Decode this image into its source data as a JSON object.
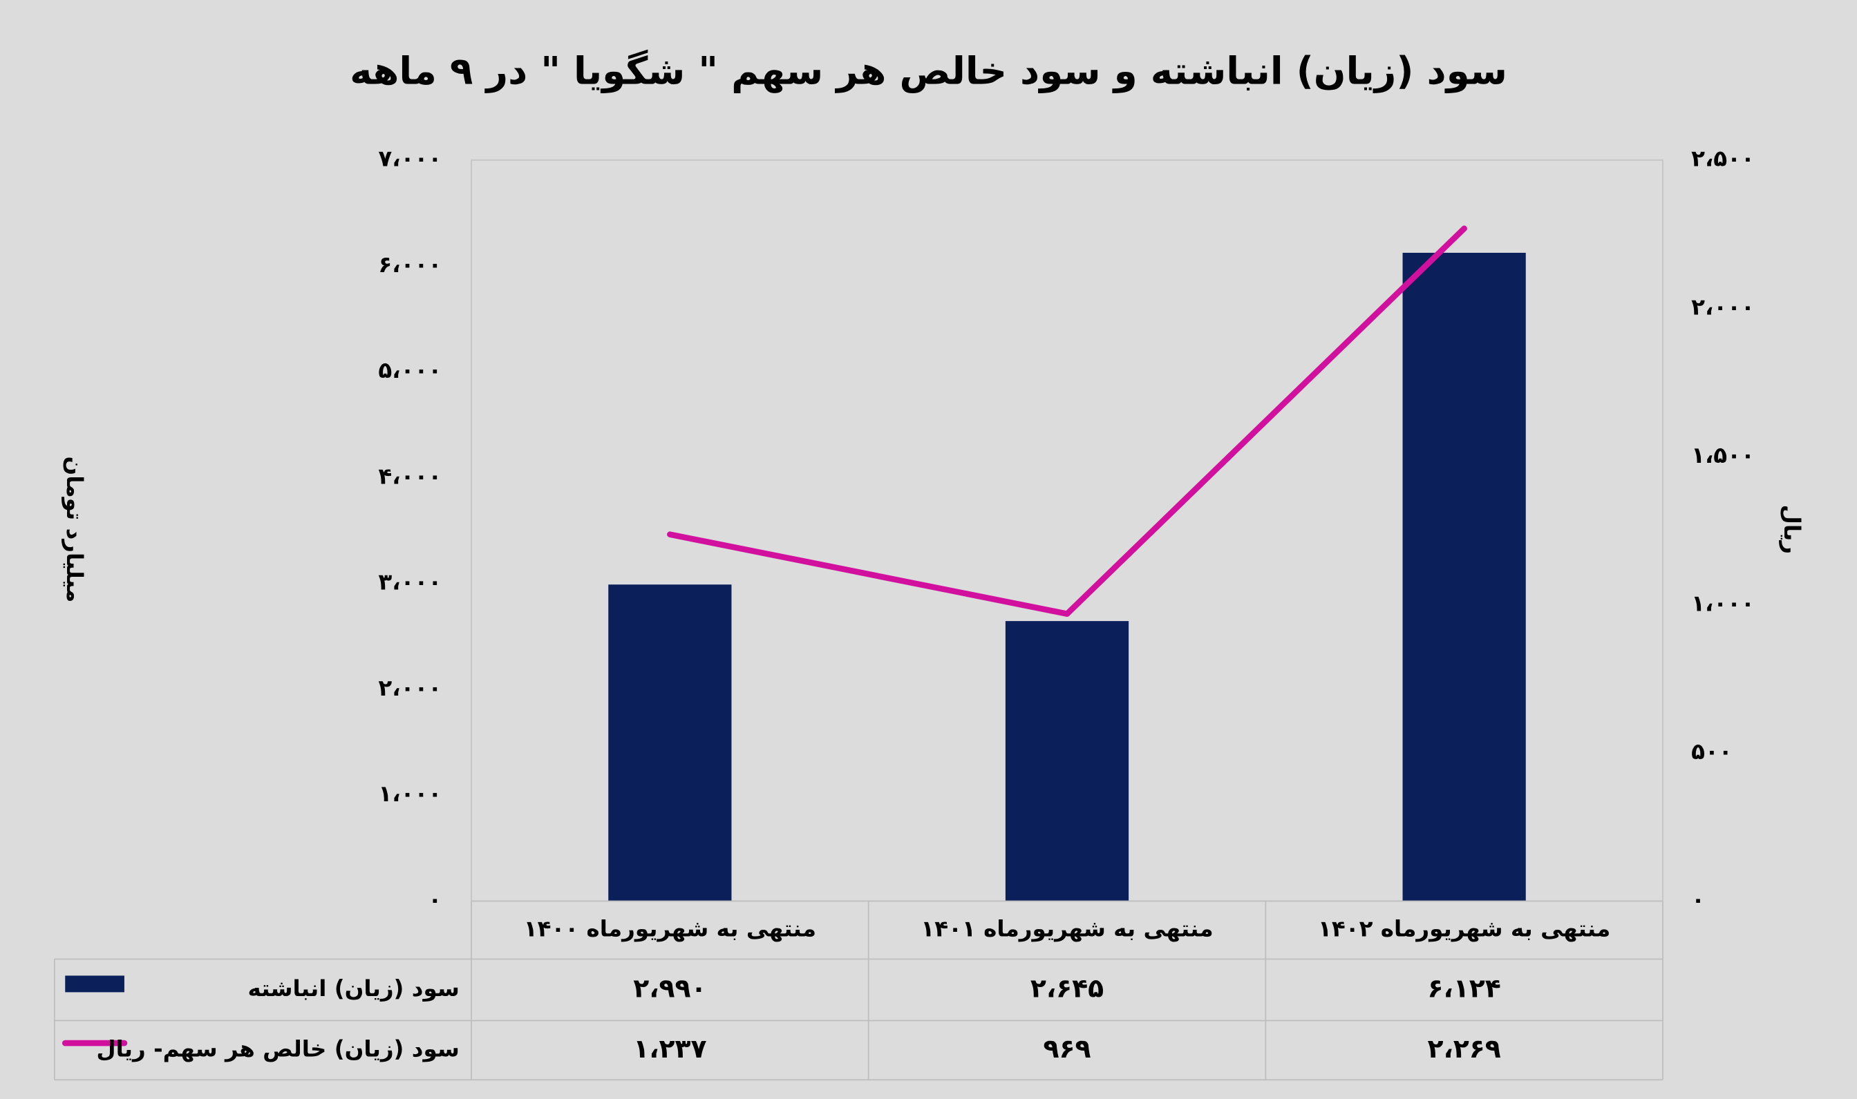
{
  "chart_data": {
    "type": "bar",
    "title": "سود (زیان) انباشته و سود خالص هر سهم \" شگویا \" در ۹ ماهه",
    "y_label": "میلیارد تومان",
    "y2_label": "ریال",
    "categories": [
      "منتهی به شهریورماه ۱۴۰۰",
      "منتهی به شهریورماه ۱۴۰۱",
      "منتهی به شهریورماه ۱۴۰۲"
    ],
    "series": [
      {
        "name": "سود (زیان) انباشته",
        "type": "bar",
        "color": "#0b1f5b",
        "values": [
          2990,
          2645,
          6124
        ],
        "value_labels": [
          "۲،۹۹۰",
          "۲،۶۴۵",
          "۶،۱۲۴"
        ]
      },
      {
        "name": "سود (زیان) خالص هر سهم- ریال",
        "type": "line",
        "axis": "y2",
        "color": "#d1109e",
        "values": [
          1237,
          969,
          2269
        ],
        "value_labels": [
          "۱،۲۳۷",
          "۹۶۹",
          "۲،۲۶۹"
        ]
      }
    ],
    "ylim": [
      0,
      7000
    ],
    "yticks": [
      {
        "value": 0,
        "label": "۰"
      },
      {
        "value": 1000,
        "label": "۱،۰۰۰"
      },
      {
        "value": 2000,
        "label": "۲،۰۰۰"
      },
      {
        "value": 3000,
        "label": "۳،۰۰۰"
      },
      {
        "value": 4000,
        "label": "۴،۰۰۰"
      },
      {
        "value": 5000,
        "label": "۵،۰۰۰"
      },
      {
        "value": 6000,
        "label": "۶،۰۰۰"
      },
      {
        "value": 7000,
        "label": "۷،۰۰۰"
      }
    ],
    "y2lim": [
      0,
      2500
    ],
    "y2ticks": [
      {
        "value": 0,
        "label": "۰"
      },
      {
        "value": 500,
        "label": "۵۰۰"
      },
      {
        "value": 1000,
        "label": "۱،۰۰۰"
      },
      {
        "value": 1500,
        "label": "۱،۵۰۰"
      },
      {
        "value": 2000,
        "label": "۲،۰۰۰"
      },
      {
        "value": 2500,
        "label": "۲،۵۰۰"
      }
    ],
    "data_table": true
  }
}
